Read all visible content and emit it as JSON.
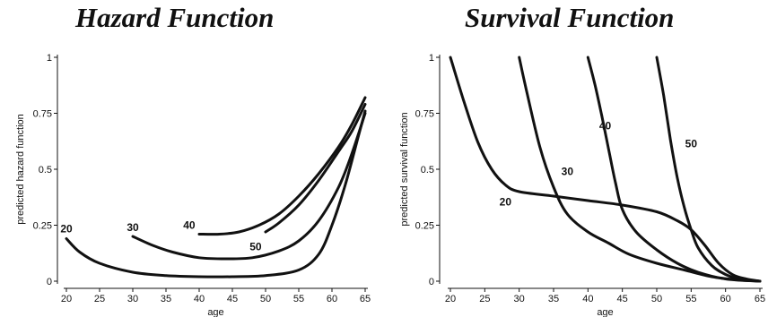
{
  "chart_data": [
    {
      "type": "line",
      "title": "Hazard Function",
      "xlabel": "age",
      "ylabel": "predicted hazard function",
      "xlim": [
        20,
        65
      ],
      "ylim": [
        0,
        1
      ],
      "x_ticks": [
        "20",
        "25",
        "30",
        "35",
        "40",
        "45",
        "50",
        "55",
        "60",
        "65"
      ],
      "y_ticks": [
        "0",
        "0.25",
        "0.5",
        "0.75",
        "1"
      ],
      "series": [
        {
          "name": "20",
          "label_x": 20,
          "label_y": 0.235,
          "points": [
            [
              20,
              0.19
            ],
            [
              22,
              0.13
            ],
            [
              25,
              0.08
            ],
            [
              30,
              0.04
            ],
            [
              35,
              0.025
            ],
            [
              40,
              0.02
            ],
            [
              45,
              0.02
            ],
            [
              50,
              0.025
            ],
            [
              55,
              0.05
            ],
            [
              58,
              0.12
            ],
            [
              60,
              0.25
            ],
            [
              62,
              0.43
            ],
            [
              64,
              0.65
            ],
            [
              65,
              0.76
            ]
          ]
        },
        {
          "name": "30",
          "label_x": 30,
          "label_y": 0.24,
          "points": [
            [
              30,
              0.2
            ],
            [
              33,
              0.16
            ],
            [
              36,
              0.13
            ],
            [
              40,
              0.105
            ],
            [
              44,
              0.1
            ],
            [
              48,
              0.105
            ],
            [
              52,
              0.135
            ],
            [
              55,
              0.18
            ],
            [
              58,
              0.27
            ],
            [
              61,
              0.42
            ],
            [
              63,
              0.57
            ],
            [
              65,
              0.75
            ]
          ]
        },
        {
          "name": "40",
          "label_x": 38.5,
          "label_y": 0.25,
          "points": [
            [
              40,
              0.21
            ],
            [
              43,
              0.21
            ],
            [
              46,
              0.22
            ],
            [
              49,
              0.25
            ],
            [
              52,
              0.3
            ],
            [
              55,
              0.38
            ],
            [
              58,
              0.48
            ],
            [
              61,
              0.6
            ],
            [
              63,
              0.7
            ],
            [
              65,
              0.82
            ]
          ]
        },
        {
          "name": "50",
          "label_x": 48.5,
          "label_y": 0.155,
          "points": [
            [
              50,
              0.22
            ],
            [
              52,
              0.26
            ],
            [
              55,
              0.34
            ],
            [
              58,
              0.45
            ],
            [
              61,
              0.58
            ],
            [
              63,
              0.67
            ],
            [
              65,
              0.79
            ]
          ]
        }
      ]
    },
    {
      "type": "line",
      "title": "Survival Function",
      "xlabel": "age",
      "ylabel": "predicted survival function",
      "xlim": [
        20,
        65
      ],
      "ylim": [
        0,
        1
      ],
      "x_ticks": [
        "20",
        "25",
        "30",
        "35",
        "40",
        "45",
        "50",
        "55",
        "60",
        "65"
      ],
      "y_ticks": [
        "0",
        "0.25",
        "0.5",
        "0.75",
        "1"
      ],
      "series": [
        {
          "name": "20",
          "label_x": 28,
          "label_y": 0.355,
          "points": [
            [
              20,
              1.0
            ],
            [
              22,
              0.8
            ],
            [
              24,
              0.62
            ],
            [
              26,
              0.5
            ],
            [
              28,
              0.43
            ],
            [
              30,
              0.4
            ],
            [
              35,
              0.38
            ],
            [
              40,
              0.36
            ],
            [
              45,
              0.34
            ],
            [
              50,
              0.31
            ],
            [
              53,
              0.27
            ],
            [
              55,
              0.23
            ],
            [
              57,
              0.16
            ],
            [
              59,
              0.08
            ],
            [
              61,
              0.03
            ],
            [
              63,
              0.01
            ],
            [
              65,
              0.0
            ]
          ]
        },
        {
          "name": "30",
          "label_x": 37,
          "label_y": 0.49,
          "points": [
            [
              30,
              1.0
            ],
            [
              31,
              0.86
            ],
            [
              33,
              0.6
            ],
            [
              35,
              0.42
            ],
            [
              37,
              0.3
            ],
            [
              40,
              0.22
            ],
            [
              43,
              0.17
            ],
            [
              46,
              0.12
            ],
            [
              50,
              0.08
            ],
            [
              54,
              0.05
            ],
            [
              58,
              0.02
            ],
            [
              62,
              0.005
            ],
            [
              65,
              0.0
            ]
          ]
        },
        {
          "name": "40",
          "label_x": 42.5,
          "label_y": 0.695,
          "points": [
            [
              40,
              1.0
            ],
            [
              41,
              0.88
            ],
            [
              42,
              0.74
            ],
            [
              43,
              0.59
            ],
            [
              44,
              0.44
            ],
            [
              45,
              0.32
            ],
            [
              47,
              0.22
            ],
            [
              50,
              0.14
            ],
            [
              53,
              0.08
            ],
            [
              56,
              0.04
            ],
            [
              60,
              0.01
            ],
            [
              65,
              0.0
            ]
          ]
        },
        {
          "name": "50",
          "label_x": 55,
          "label_y": 0.615,
          "points": [
            [
              50,
              1.0
            ],
            [
              51,
              0.83
            ],
            [
              52,
              0.63
            ],
            [
              53,
              0.46
            ],
            [
              54,
              0.33
            ],
            [
              55,
              0.23
            ],
            [
              56,
              0.15
            ],
            [
              58,
              0.07
            ],
            [
              60,
              0.03
            ],
            [
              62,
              0.01
            ],
            [
              65,
              0.0
            ]
          ]
        }
      ]
    }
  ]
}
